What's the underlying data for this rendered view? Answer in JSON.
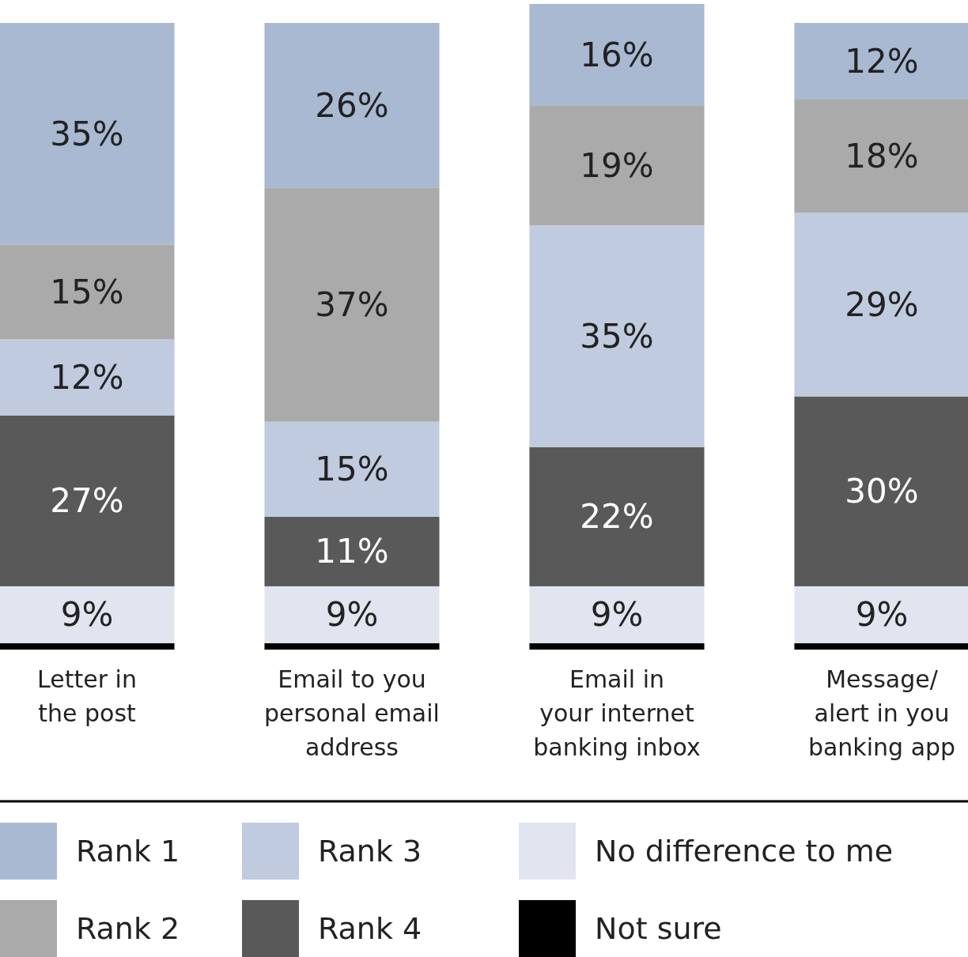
{
  "chart_data": {
    "type": "bar",
    "stacked": true,
    "tick_labels": "x",
    "legend": "bottom",
    "categories": [
      "Letter in\nthe post",
      "Email to you\npersonal email\naddress",
      "Email in\nyour internet\nbanking inbox",
      "Message/\nalert in you\nbanking app"
    ],
    "series": [
      {
        "name": "Not sure",
        "color": "#000000",
        "values": [
          1,
          1,
          1,
          1
        ],
        "value_labels": [
          null,
          null,
          null,
          null
        ]
      },
      {
        "name": "No difference to me",
        "color": "#e1e5ef",
        "values": [
          9,
          9,
          9,
          9
        ],
        "value_labels": [
          "9%",
          "9%",
          "9%",
          "9%"
        ]
      },
      {
        "name": "Rank 4",
        "color": "#595959",
        "values": [
          27,
          11,
          22,
          30
        ],
        "value_labels": [
          "27%",
          "11%",
          "22%",
          "30%"
        ]
      },
      {
        "name": "Rank 3",
        "color": "#c1cbdf",
        "values": [
          12,
          15,
          35,
          29
        ],
        "value_labels": [
          "12%",
          "15%",
          "35%",
          "29%"
        ]
      },
      {
        "name": "Rank 2",
        "color": "#aaaaaa",
        "values": [
          15,
          37,
          19,
          18
        ],
        "value_labels": [
          "15%",
          "37%",
          "19%",
          "18%"
        ]
      },
      {
        "name": "Rank 1",
        "color": "#a9b9d2",
        "values": [
          35,
          26,
          16,
          12
        ],
        "value_labels": [
          "35%",
          "26%",
          "16%",
          "12%"
        ]
      }
    ]
  }
}
